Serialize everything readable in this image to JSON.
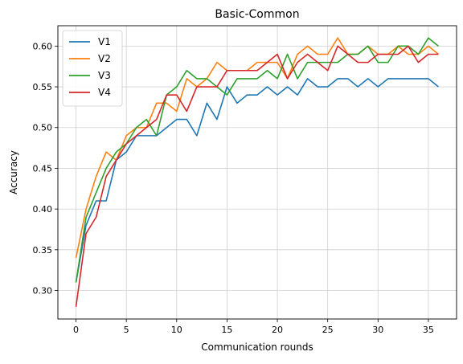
{
  "chart_data": {
    "type": "line",
    "title": "Basic-Common",
    "xlabel": "Communication rounds",
    "ylabel": "Accuracy",
    "xlim": [
      -1.8,
      37.8
    ],
    "ylim": [
      0.265,
      0.625
    ],
    "xticks": [
      0,
      5,
      10,
      15,
      20,
      25,
      30,
      35
    ],
    "yticks": [
      0.3,
      0.35,
      0.4,
      0.45,
      0.5,
      0.55,
      0.6
    ],
    "grid": true,
    "legend_position": "top-left",
    "x": [
      0,
      1,
      2,
      3,
      4,
      5,
      6,
      7,
      8,
      9,
      10,
      11,
      12,
      13,
      14,
      15,
      16,
      17,
      18,
      19,
      20,
      21,
      22,
      23,
      24,
      25,
      26,
      27,
      28,
      29,
      30,
      31,
      32,
      33,
      34,
      35,
      36
    ],
    "series": [
      {
        "name": "V1",
        "color": "#1f77b4",
        "values": [
          0.31,
          0.38,
          0.41,
          0.41,
          0.46,
          0.47,
          0.49,
          0.49,
          0.49,
          0.5,
          0.51,
          0.51,
          0.49,
          0.53,
          0.51,
          0.55,
          0.53,
          0.54,
          0.54,
          0.55,
          0.54,
          0.55,
          0.54,
          0.56,
          0.55,
          0.55,
          0.56,
          0.56,
          0.55,
          0.56,
          0.55,
          0.56,
          0.56,
          0.56,
          0.56,
          0.56,
          0.55
        ]
      },
      {
        "name": "V2",
        "color": "#ff7f0e",
        "values": [
          0.34,
          0.4,
          0.44,
          0.47,
          0.46,
          0.49,
          0.5,
          0.5,
          0.53,
          0.53,
          0.52,
          0.56,
          0.55,
          0.56,
          0.58,
          0.57,
          0.57,
          0.57,
          0.58,
          0.58,
          0.58,
          0.56,
          0.59,
          0.6,
          0.59,
          0.59,
          0.61,
          0.59,
          0.59,
          0.6,
          0.59,
          0.59,
          0.6,
          0.59,
          0.59,
          0.6,
          0.59
        ]
      },
      {
        "name": "V3",
        "color": "#2ca02c",
        "values": [
          0.31,
          0.39,
          0.42,
          0.45,
          0.47,
          0.48,
          0.5,
          0.51,
          0.49,
          0.54,
          0.55,
          0.57,
          0.56,
          0.56,
          0.55,
          0.54,
          0.56,
          0.56,
          0.56,
          0.57,
          0.56,
          0.59,
          0.56,
          0.58,
          0.58,
          0.58,
          0.58,
          0.59,
          0.59,
          0.6,
          0.58,
          0.58,
          0.6,
          0.6,
          0.59,
          0.61,
          0.6
        ]
      },
      {
        "name": "V4",
        "color": "#d62728",
        "values": [
          0.28,
          0.37,
          0.39,
          0.44,
          0.46,
          0.48,
          0.49,
          0.5,
          0.51,
          0.54,
          0.54,
          0.52,
          0.55,
          0.55,
          0.55,
          0.57,
          0.57,
          0.57,
          0.57,
          0.58,
          0.59,
          0.56,
          0.58,
          0.59,
          0.58,
          0.57,
          0.6,
          0.59,
          0.58,
          0.58,
          0.59,
          0.59,
          0.59,
          0.6,
          0.58,
          0.59,
          0.59
        ]
      }
    ]
  }
}
